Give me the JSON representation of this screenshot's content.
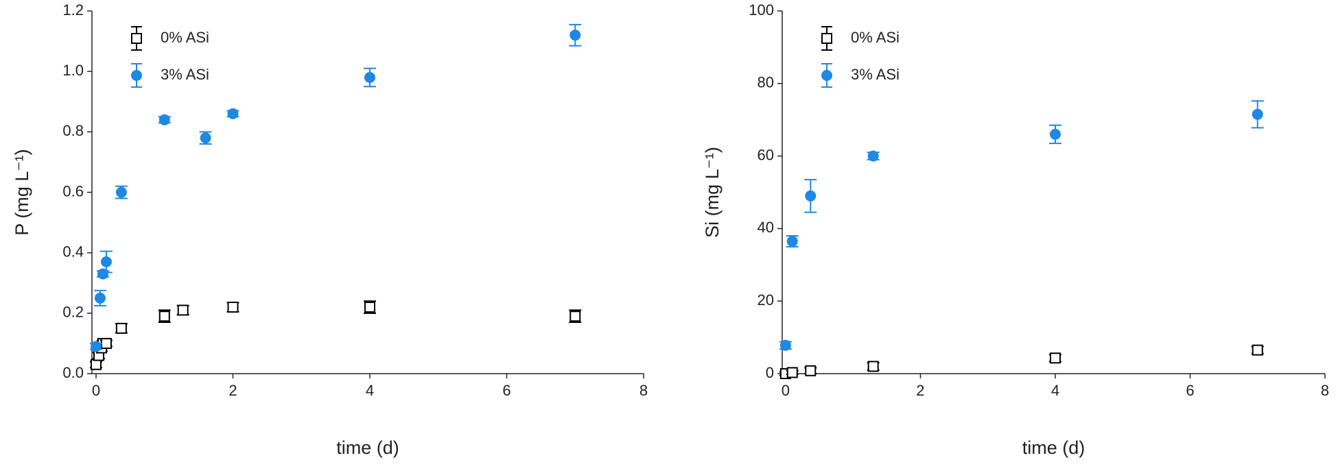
{
  "chart_data": [
    {
      "type": "scatter",
      "xlabel": "time (d)",
      "ylabel": "P (mg L⁻¹)",
      "xlim": [
        -0.06,
        8
      ],
      "xticks": [
        0,
        2,
        4,
        6,
        8
      ],
      "ylim": [
        0,
        1.2
      ],
      "yticks": [
        {
          "value": 0,
          "label": "0.0"
        },
        0.2,
        0.4,
        0.6,
        0.8,
        {
          "value": 1,
          "label": "1.0"
        },
        1.2
      ],
      "legend": "upper left",
      "series": [
        {
          "name": "0% ASi",
          "color": "#000000",
          "marker": "square",
          "x": [
            0,
            0.04,
            0.08,
            0.1,
            0.15,
            0.37,
            1.0,
            1.27,
            2.0,
            4.0,
            7.0
          ],
          "values": [
            0.03,
            0.06,
            0.085,
            0.1,
            0.1,
            0.15,
            0.19,
            0.21,
            0.22,
            0.22,
            0.19
          ],
          "errors": [
            0.01,
            0.01,
            0.01,
            0.01,
            0.01,
            0.015,
            0.02,
            0.015,
            0.015,
            0.02,
            0.02
          ]
        },
        {
          "name": "3% ASi",
          "color": "#1e88e5",
          "marker": "circle",
          "x": [
            0,
            0.06,
            0.1,
            0.15,
            0.37,
            1.0,
            1.6,
            2.0,
            4.0,
            7.0
          ],
          "values": [
            0.09,
            0.25,
            0.33,
            0.37,
            0.6,
            0.84,
            0.78,
            0.86,
            0.98,
            1.12
          ],
          "errors": [
            0.01,
            0.025,
            0.01,
            0.035,
            0.02,
            0.01,
            0.02,
            0.01,
            0.03,
            0.035
          ]
        }
      ]
    },
    {
      "type": "scatter",
      "xlabel": "time (d)",
      "ylabel": "Si (mg L⁻¹)",
      "xlim": [
        -0.05,
        8
      ],
      "xticks": [
        0,
        2,
        4,
        6,
        8
      ],
      "ylim": [
        0,
        100
      ],
      "yticks": [
        0,
        20,
        40,
        60,
        80,
        100
      ],
      "legend": "upper left",
      "series": [
        {
          "name": "0% ASi",
          "color": "#000000",
          "marker": "square",
          "x": [
            0,
            0.1,
            0.37,
            1.3,
            4.0,
            7.0
          ],
          "values": [
            0,
            0.3,
            0.8,
            2,
            4.3,
            6.5
          ],
          "errors": [
            0.5,
            0.5,
            0.8,
            1,
            1,
            1
          ]
        },
        {
          "name": "3% ASi",
          "color": "#1e88e5",
          "marker": "circle",
          "x": [
            0,
            0.1,
            0.37,
            1.3,
            4.0,
            7.0
          ],
          "values": [
            7.8,
            36.5,
            49,
            60,
            66,
            71.5
          ],
          "errors": [
            1,
            1.5,
            4.5,
            1,
            2.5,
            3.7
          ]
        }
      ]
    }
  ]
}
